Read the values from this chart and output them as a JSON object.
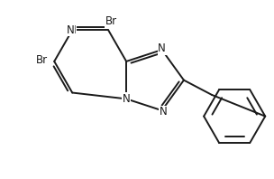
{
  "background_color": "#ffffff",
  "line_color": "#1a1a1a",
  "line_width": 1.4,
  "font_size": 8.5,
  "xlim": [
    0,
    10
  ],
  "ylim": [
    0,
    6.5
  ],
  "figsize": [
    3.04,
    1.98
  ],
  "dpi": 100
}
